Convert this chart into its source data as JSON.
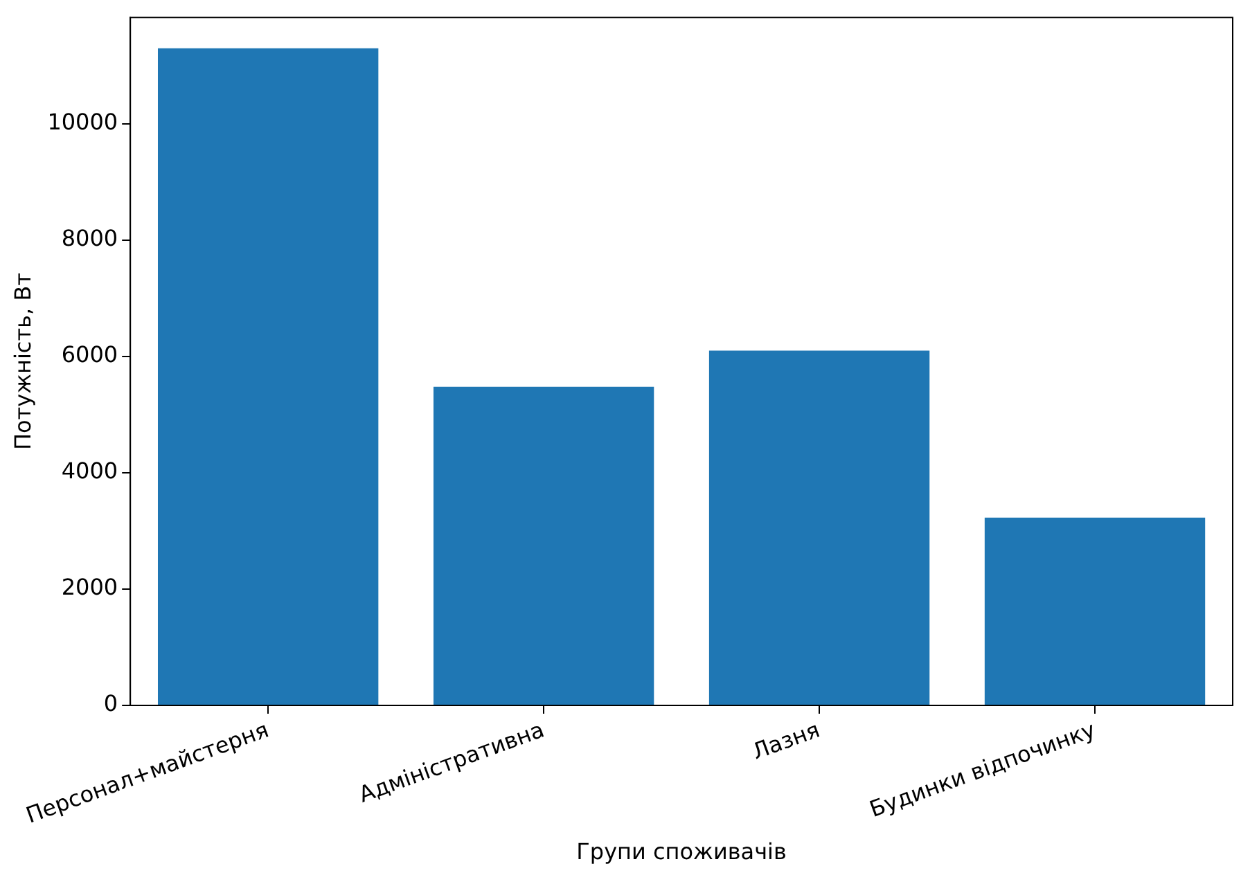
{
  "chart_data": {
    "type": "bar",
    "xlabel": "Групи споживачів",
    "ylabel": "Потужність, Вт",
    "categories": [
      "Персонал+майстерня",
      "Адміністративна",
      "Лазня",
      "Будинки відпочинку"
    ],
    "values": [
      11300,
      5480,
      6100,
      3230
    ],
    "color": "#1f77b4",
    "ylim": [
      0,
      11830
    ],
    "yticks": [
      0,
      2000,
      4000,
      6000,
      8000,
      10000
    ]
  }
}
